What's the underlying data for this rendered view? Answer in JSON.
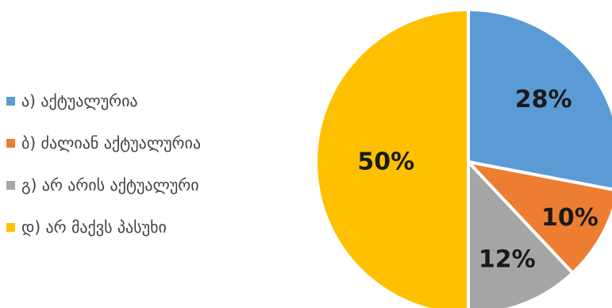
{
  "chart_data": {
    "type": "pie",
    "legend_position": "left",
    "series": [
      {
        "values": [
          28,
          10,
          12,
          50
        ],
        "data_labels": [
          "28%",
          "10%",
          "12%",
          "50%"
        ]
      }
    ],
    "categories": [
      "ა) აქტუალურია",
      "ბ) ძალიან აქტუალურია",
      "გ) არ არის აქტუალური",
      "დ) არ მაქვს პასუხი"
    ],
    "colors": [
      "#5B9BD5",
      "#ED7D31",
      "#A5A5A5",
      "#FFC000"
    ]
  }
}
